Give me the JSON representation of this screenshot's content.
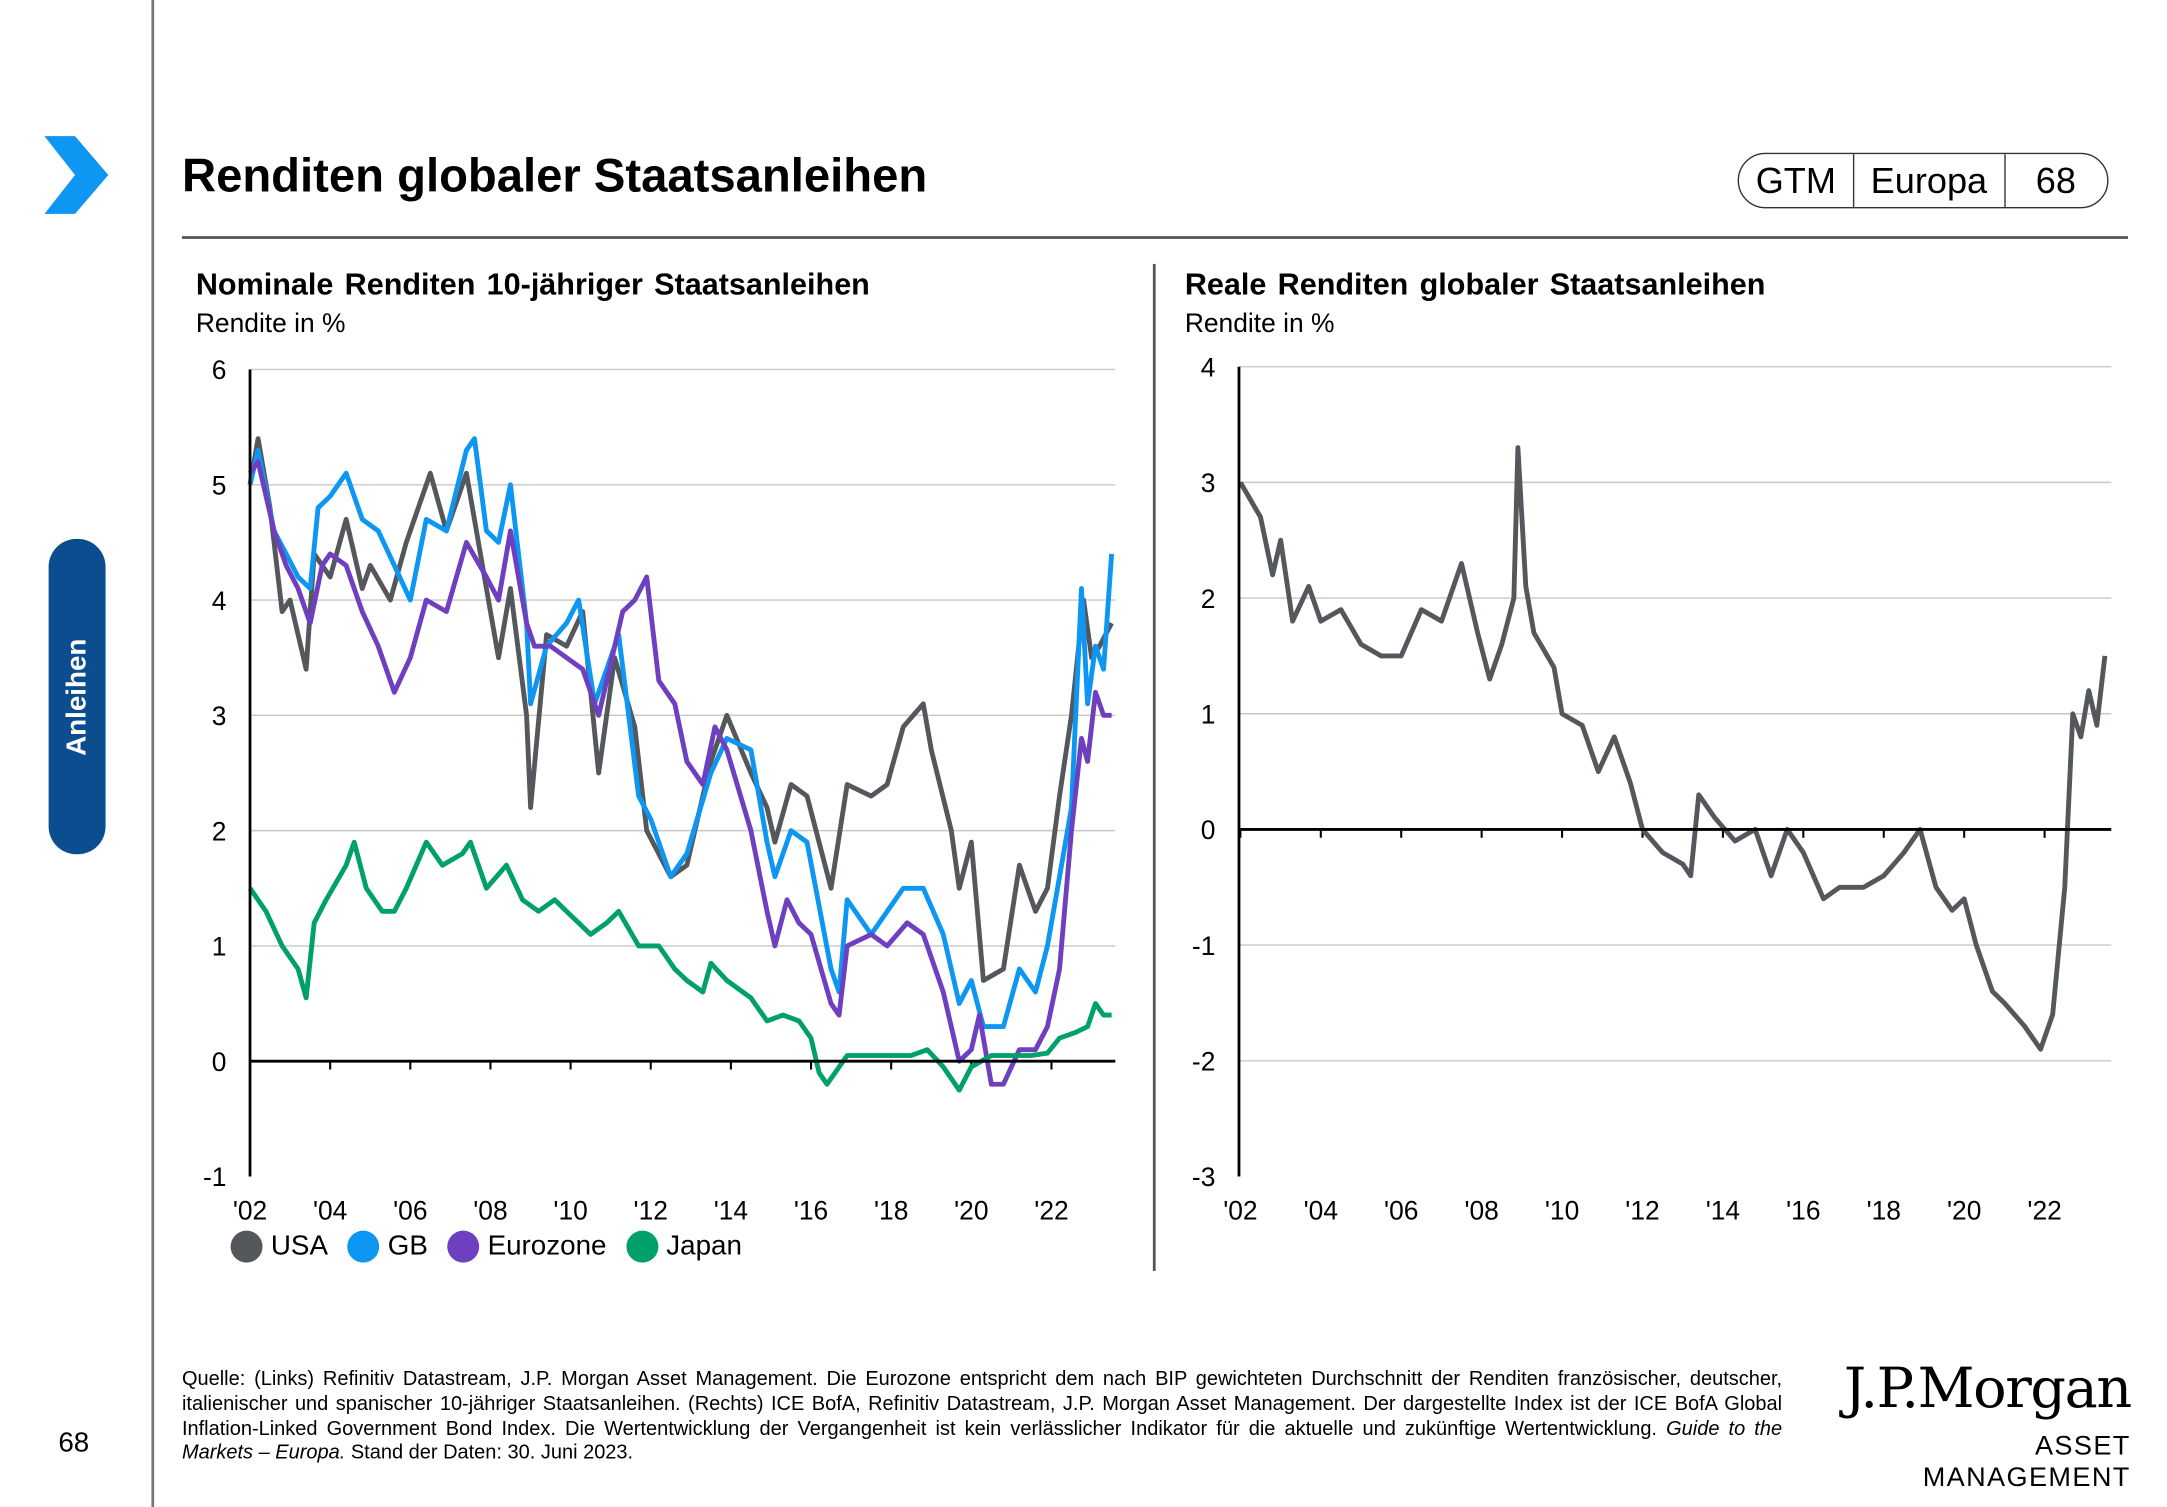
{
  "header": {
    "title": "Renditen globaler Staatsanleihen",
    "badge": [
      "GTM",
      "Europa",
      "68"
    ]
  },
  "sidebar": {
    "section_label": "Anleihen",
    "page_number": "68"
  },
  "colors": {
    "USA": "#54575b",
    "GB": "#0d96f2",
    "Eurozone": "#6e3fbf",
    "Japan": "#00a06b",
    "brand": "#0b4d8f"
  },
  "footer": {
    "text": "Quelle: (Links) Refinitiv Datastream, J.P. Morgan Asset Management. Die Eurozone entspricht dem nach BIP gewichteten Durchschnitt der Renditen französischer, deutscher, italienischer und spanischer 10-jähriger Staatsanleihen. (Rechts) ICE BofA, Refinitiv Datastream, J.P. Morgan Asset Management. Der dargestellte Index ist der ICE BofA Global Inflation-Linked Government Bond Index. Die Wertentwicklung der Vergangenheit ist kein verlässlicher Indikator für die aktuelle und zukünftige Wertentwicklung.",
    "italic": "Guide to the Markets – Europa.",
    "date": "Stand der Daten: 30. Juni 2023."
  },
  "logo": {
    "line1": "J.P.Morgan",
    "line2": "ASSET MANAGEMENT"
  },
  "chart_data": [
    {
      "type": "line",
      "title": "Nominale Renditen 10-jähriger Staatsanleihen",
      "ylabel": "Rendite in %",
      "ylim": [
        -1,
        6
      ],
      "yticks": [
        -1,
        0,
        1,
        2,
        3,
        4,
        5,
        6
      ],
      "xlim": [
        2002,
        2023.6
      ],
      "xticks": [
        {
          "v": 2002,
          "l": "'02"
        },
        {
          "v": 2004,
          "l": "'04"
        },
        {
          "v": 2006,
          "l": "'06"
        },
        {
          "v": 2008,
          "l": "'08"
        },
        {
          "v": 2010,
          "l": "'10"
        },
        {
          "v": 2012,
          "l": "'12"
        },
        {
          "v": 2014,
          "l": "'14"
        },
        {
          "v": 2016,
          "l": "'16"
        },
        {
          "v": 2018,
          "l": "'18"
        },
        {
          "v": 2020,
          "l": "'20"
        },
        {
          "v": 2022,
          "l": "'22"
        }
      ],
      "grid": true,
      "legend": "bottom",
      "series": [
        {
          "name": "USA",
          "x": [
            2002,
            2002.2,
            2002.5,
            2002.8,
            2003,
            2003.4,
            2003.6,
            2004,
            2004.4,
            2004.8,
            2005,
            2005.5,
            2005.9,
            2006.5,
            2006.9,
            2007.4,
            2007.9,
            2008.2,
            2008.5,
            2008.9,
            2009,
            2009.4,
            2009.9,
            2010.3,
            2010.7,
            2011.1,
            2011.6,
            2011.9,
            2012.5,
            2012.9,
            2013.5,
            2013.9,
            2014.5,
            2014.9,
            2015.1,
            2015.5,
            2015.9,
            2016.5,
            2016.9,
            2017.5,
            2017.9,
            2018.3,
            2018.8,
            2019,
            2019.5,
            2019.7,
            2020,
            2020.3,
            2020.8,
            2021.2,
            2021.6,
            2021.9,
            2022.2,
            2022.5,
            2022.8,
            2023,
            2023.2,
            2023.5
          ],
          "y": [
            5.0,
            5.4,
            4.8,
            3.9,
            4.0,
            3.4,
            4.4,
            4.2,
            4.7,
            4.1,
            4.3,
            4.0,
            4.5,
            5.1,
            4.6,
            5.1,
            4.1,
            3.5,
            4.1,
            3.0,
            2.2,
            3.7,
            3.6,
            3.9,
            2.5,
            3.5,
            2.9,
            2.0,
            1.6,
            1.7,
            2.6,
            3.0,
            2.5,
            2.2,
            1.9,
            2.4,
            2.3,
            1.5,
            2.4,
            2.3,
            2.4,
            2.9,
            3.1,
            2.7,
            2.0,
            1.5,
            1.9,
            0.7,
            0.8,
            1.7,
            1.3,
            1.5,
            2.3,
            3.0,
            4.0,
            3.5,
            3.6,
            3.8
          ]
        },
        {
          "name": "GB",
          "x": [
            2002,
            2002.2,
            2002.6,
            2002.9,
            2003.2,
            2003.5,
            2003.7,
            2004,
            2004.4,
            2004.8,
            2005.2,
            2005.6,
            2006,
            2006.4,
            2006.9,
            2007.4,
            2007.6,
            2007.9,
            2008.2,
            2008.5,
            2008.9,
            2009,
            2009.4,
            2009.9,
            2010.2,
            2010.6,
            2010.9,
            2011.2,
            2011.7,
            2012,
            2012.5,
            2012.9,
            2013.5,
            2013.9,
            2014.5,
            2014.9,
            2015.1,
            2015.5,
            2015.9,
            2016.5,
            2016.7,
            2016.9,
            2017.5,
            2017.9,
            2018.3,
            2018.8,
            2019.3,
            2019.7,
            2020,
            2020.3,
            2020.8,
            2021.2,
            2021.6,
            2021.9,
            2022.2,
            2022.5,
            2022.75,
            2022.9,
            2023.1,
            2023.3,
            2023.5
          ],
          "y": [
            5.0,
            5.3,
            4.6,
            4.4,
            4.2,
            4.1,
            4.8,
            4.9,
            5.1,
            4.7,
            4.6,
            4.3,
            4.0,
            4.7,
            4.6,
            5.3,
            5.4,
            4.6,
            4.5,
            5.0,
            3.8,
            3.1,
            3.6,
            3.8,
            4.0,
            3.1,
            3.4,
            3.7,
            2.3,
            2.1,
            1.6,
            1.8,
            2.5,
            2.8,
            2.7,
            1.9,
            1.6,
            2.0,
            1.9,
            0.8,
            0.6,
            1.4,
            1.1,
            1.3,
            1.5,
            1.5,
            1.1,
            0.5,
            0.7,
            0.3,
            0.3,
            0.8,
            0.6,
            1.0,
            1.6,
            2.2,
            4.1,
            3.1,
            3.6,
            3.4,
            4.4
          ]
        },
        {
          "name": "Eurozone",
          "x": [
            2002,
            2002.2,
            2002.6,
            2002.9,
            2003.2,
            2003.5,
            2003.8,
            2004,
            2004.4,
            2004.8,
            2005.2,
            2005.6,
            2006,
            2006.4,
            2006.9,
            2007.4,
            2007.9,
            2008.2,
            2008.5,
            2008.9,
            2009.1,
            2009.5,
            2009.9,
            2010.3,
            2010.7,
            2010.9,
            2011.3,
            2011.6,
            2011.9,
            2012.2,
            2012.6,
            2012.9,
            2013.3,
            2013.6,
            2013.9,
            2014.5,
            2014.9,
            2015.1,
            2015.4,
            2015.7,
            2016,
            2016.5,
            2016.7,
            2016.9,
            2017.5,
            2017.9,
            2018.4,
            2018.8,
            2019.3,
            2019.7,
            2020,
            2020.2,
            2020.5,
            2020.8,
            2021.2,
            2021.6,
            2021.9,
            2022.2,
            2022.5,
            2022.75,
            2022.9,
            2023.1,
            2023.3,
            2023.5
          ],
          "y": [
            5.1,
            5.2,
            4.6,
            4.3,
            4.1,
            3.8,
            4.3,
            4.4,
            4.3,
            3.9,
            3.6,
            3.2,
            3.5,
            4.0,
            3.9,
            4.5,
            4.2,
            4.0,
            4.6,
            3.8,
            3.6,
            3.6,
            3.5,
            3.4,
            3.0,
            3.3,
            3.9,
            4.0,
            4.2,
            3.3,
            3.1,
            2.6,
            2.4,
            2.9,
            2.7,
            2.0,
            1.3,
            1.0,
            1.4,
            1.2,
            1.1,
            0.5,
            0.4,
            1.0,
            1.1,
            1.0,
            1.2,
            1.1,
            0.6,
            0.0,
            0.1,
            0.4,
            -0.2,
            -0.2,
            0.1,
            0.1,
            0.3,
            0.8,
            2.0,
            2.8,
            2.6,
            3.2,
            3.0,
            3.0
          ]
        },
        {
          "name": "Japan",
          "x": [
            2002,
            2002.4,
            2002.8,
            2003.2,
            2003.4,
            2003.6,
            2003.9,
            2004.4,
            2004.6,
            2004.9,
            2005.3,
            2005.6,
            2005.9,
            2006.4,
            2006.8,
            2007.3,
            2007.5,
            2007.9,
            2008.4,
            2008.8,
            2009.2,
            2009.6,
            2009.9,
            2010.5,
            2010.9,
            2011.2,
            2011.7,
            2012.2,
            2012.6,
            2012.9,
            2013.3,
            2013.5,
            2013.9,
            2014.5,
            2014.9,
            2015.3,
            2015.7,
            2016,
            2016.2,
            2016.4,
            2016.9,
            2017.5,
            2018,
            2018.5,
            2018.9,
            2019.3,
            2019.7,
            2020,
            2020.5,
            2021,
            2021.5,
            2021.9,
            2022.2,
            2022.6,
            2022.9,
            2023.1,
            2023.3,
            2023.5
          ],
          "y": [
            1.5,
            1.3,
            1.0,
            0.8,
            0.55,
            1.2,
            1.4,
            1.7,
            1.9,
            1.5,
            1.3,
            1.3,
            1.5,
            1.9,
            1.7,
            1.8,
            1.9,
            1.5,
            1.7,
            1.4,
            1.3,
            1.4,
            1.3,
            1.1,
            1.2,
            1.3,
            1.0,
            1.0,
            0.8,
            0.7,
            0.6,
            0.85,
            0.7,
            0.55,
            0.35,
            0.4,
            0.35,
            0.2,
            -0.1,
            -0.2,
            0.05,
            0.05,
            0.05,
            0.05,
            0.1,
            -0.05,
            -0.25,
            -0.05,
            0.05,
            0.05,
            0.05,
            0.07,
            0.2,
            0.25,
            0.3,
            0.5,
            0.4,
            0.4
          ]
        }
      ]
    },
    {
      "type": "line",
      "title": "Reale Renditen globaler Staatsanleihen",
      "ylabel": "Rendite in %",
      "ylim": [
        -3,
        4
      ],
      "yticks": [
        -3,
        -2,
        -1,
        0,
        1,
        2,
        3,
        4
      ],
      "xlim": [
        2002,
        2023.6
      ],
      "xticks": [
        {
          "v": 2002,
          "l": "'02"
        },
        {
          "v": 2004,
          "l": "'04"
        },
        {
          "v": 2006,
          "l": "'06"
        },
        {
          "v": 2008,
          "l": "'08"
        },
        {
          "v": 2010,
          "l": "'10"
        },
        {
          "v": 2012,
          "l": "'12"
        },
        {
          "v": 2014,
          "l": "'14"
        },
        {
          "v": 2016,
          "l": "'16"
        },
        {
          "v": 2018,
          "l": "'18"
        },
        {
          "v": 2020,
          "l": "'20"
        },
        {
          "v": 2022,
          "l": "'22"
        }
      ],
      "grid": true,
      "series": [
        {
          "name": "ICE BofA Global Inflation-Linked Government Bond Index",
          "x": [
            2002,
            2002.5,
            2002.8,
            2003,
            2003.3,
            2003.7,
            2004,
            2004.5,
            2005,
            2005.5,
            2006,
            2006.5,
            2007,
            2007.5,
            2007.9,
            2008.2,
            2008.5,
            2008.8,
            2008.9,
            2009.1,
            2009.3,
            2009.8,
            2010,
            2010.5,
            2010.9,
            2011.3,
            2011.7,
            2012,
            2012.5,
            2013,
            2013.2,
            2013.4,
            2013.8,
            2014.3,
            2014.8,
            2015.2,
            2015.6,
            2016,
            2016.5,
            2016.9,
            2017.5,
            2018,
            2018.5,
            2018.9,
            2019.3,
            2019.7,
            2020,
            2020.3,
            2020.7,
            2021,
            2021.5,
            2021.9,
            2022.2,
            2022.5,
            2022.7,
            2022.9,
            2023.1,
            2023.3,
            2023.5
          ],
          "y": [
            3.0,
            2.7,
            2.2,
            2.5,
            1.8,
            2.1,
            1.8,
            1.9,
            1.6,
            1.5,
            1.5,
            1.9,
            1.8,
            2.3,
            1.7,
            1.3,
            1.6,
            2.0,
            3.3,
            2.1,
            1.7,
            1.4,
            1.0,
            0.9,
            0.5,
            0.8,
            0.4,
            0.0,
            -0.2,
            -0.3,
            -0.4,
            0.3,
            0.1,
            -0.1,
            0.0,
            -0.4,
            0.0,
            -0.2,
            -0.6,
            -0.5,
            -0.5,
            -0.4,
            -0.2,
            0.0,
            -0.5,
            -0.7,
            -0.6,
            -1.0,
            -1.4,
            -1.5,
            -1.7,
            -1.9,
            -1.6,
            -0.5,
            1.0,
            0.8,
            1.2,
            0.9,
            1.5
          ]
        }
      ]
    }
  ]
}
